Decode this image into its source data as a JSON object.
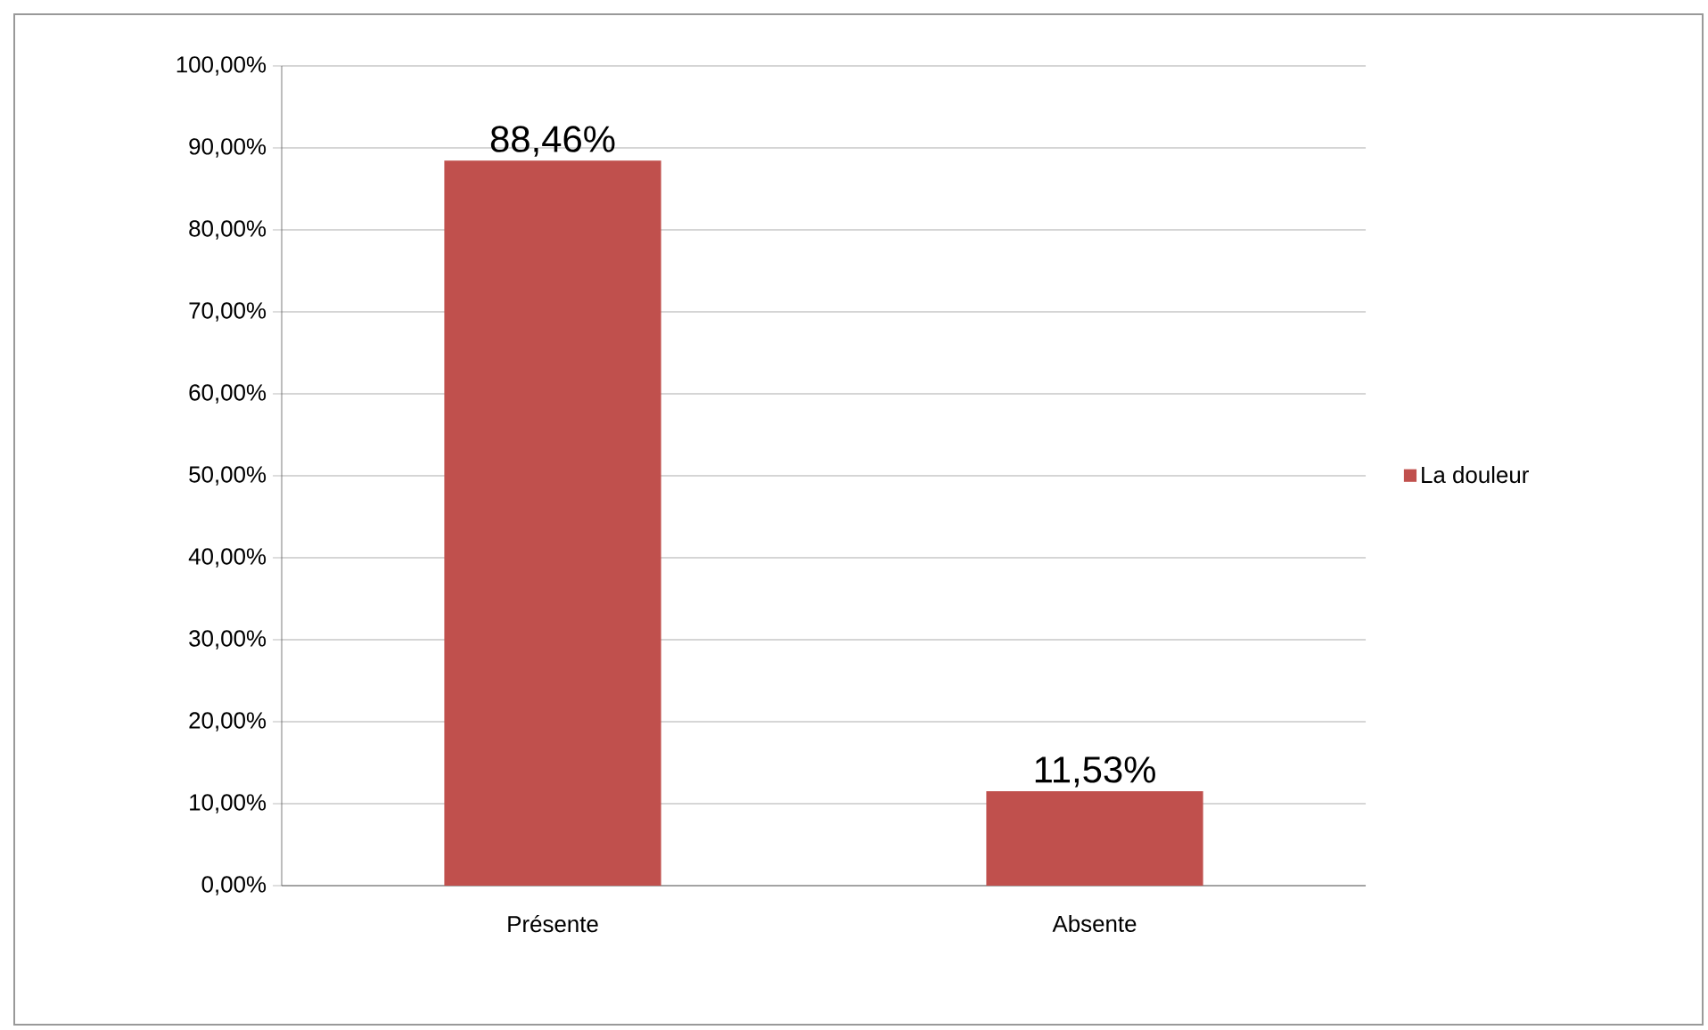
{
  "chart_data": {
    "type": "bar",
    "categories": [
      "Présente",
      "Absente"
    ],
    "series": [
      {
        "name": "La douleur",
        "color": "#c0504d",
        "values": [
          88.46,
          11.53
        ],
        "value_labels": [
          "88,46%",
          "11,53%"
        ]
      }
    ],
    "ylim": [
      0,
      100
    ],
    "yticks": [
      {
        "value": 0,
        "label": "0,00%"
      },
      {
        "value": 10,
        "label": "10,00%"
      },
      {
        "value": 20,
        "label": "20,00%"
      },
      {
        "value": 30,
        "label": "30,00%"
      },
      {
        "value": 40,
        "label": "40,00%"
      },
      {
        "value": 50,
        "label": "50,00%"
      },
      {
        "value": 60,
        "label": "60,00%"
      },
      {
        "value": 70,
        "label": "70,00%"
      },
      {
        "value": 80,
        "label": "80,00%"
      },
      {
        "value": 90,
        "label": "90,00%"
      },
      {
        "value": 100,
        "label": "100,00%"
      }
    ],
    "grid": "y",
    "legend": "right"
  }
}
